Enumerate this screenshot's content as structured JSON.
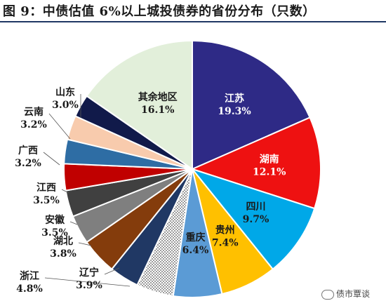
{
  "chart_data": {
    "type": "pie",
    "title": "图 9：中债估值 6%以上城投债券的省份分布（只数）",
    "unit": "%",
    "slices": [
      {
        "name": "江苏",
        "value": 19.3,
        "color": "#2e2a86",
        "label_color": "#ffffff"
      },
      {
        "name": "湖南",
        "value": 12.1,
        "color": "#ee1111",
        "label_color": "#ffffff"
      },
      {
        "name": "四川",
        "value": 9.7,
        "color": "#00a8e8",
        "label_color": "#1a1a1a"
      },
      {
        "name": "贵州",
        "value": 7.4,
        "color": "#ffc000",
        "label_color": "#1a1a1a"
      },
      {
        "name": "重庆",
        "value": 6.4,
        "color": "#5b9bd5",
        "label_color": "#1a1a1a"
      },
      {
        "name": "",
        "value": 4.9,
        "color": "pattern",
        "label_color": "#1a1a1a"
      },
      {
        "name": "辽宁",
        "value": 3.9,
        "color": "#203864",
        "label_color": "#1a1a1a"
      },
      {
        "name": "浙江",
        "value": 4.8,
        "color": "#843c0c",
        "label_color": "#1a1a1a"
      },
      {
        "name": "湖北",
        "value": 3.8,
        "color": "#7f7f7f",
        "label_color": "#1a1a1a"
      },
      {
        "name": "安徽",
        "value": 3.5,
        "color": "#404040",
        "label_color": "#1a1a1a"
      },
      {
        "name": "江西",
        "value": 3.5,
        "color": "#c00000",
        "label_color": "#1a1a1a"
      },
      {
        "name": "广西",
        "value": 3.2,
        "color": "#2e6da4",
        "label_color": "#1a1a1a"
      },
      {
        "name": "云南",
        "value": 3.2,
        "color": "#f8cbad",
        "label_color": "#1a1a1a"
      },
      {
        "name": "山东",
        "value": 3.0,
        "color": "#111a4a",
        "label_color": "#1a1a1a"
      },
      {
        "name": "其余地区",
        "value": 16.1,
        "color": "#e2efda",
        "label_color": "#1a1a1a"
      }
    ]
  },
  "watermark": {
    "text": "债市覃谈"
  }
}
